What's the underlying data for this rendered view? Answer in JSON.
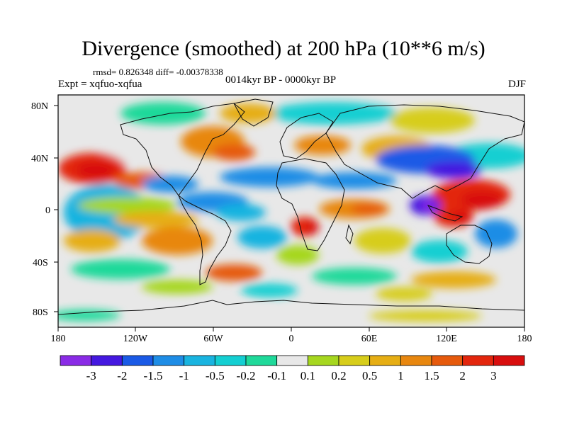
{
  "header": {
    "title": "Divergence (smoothed) at 200 hPa (10**6 m/s)",
    "stats": "rmsd= 0.826348 diff= -0.00378338",
    "experiment": "Expt = xqfuo-xqfua",
    "period": "0014kyr BP - 0000kyr BP",
    "season": "DJF"
  },
  "map": {
    "lat_ticks": [
      "80N",
      "40N",
      "0",
      "40S",
      "80S"
    ],
    "lon_ticks": [
      "180",
      "120W",
      "60W",
      "0",
      "60E",
      "120E",
      "180"
    ]
  },
  "colorbar": {
    "labels": [
      "-3",
      "-2",
      "-1.5",
      "-1",
      "-0.5",
      "-0.2",
      "-0.1",
      "0.1",
      "0.2",
      "0.5",
      "1",
      "1.5",
      "2",
      "3"
    ],
    "colors": [
      "#8a2be6",
      "#4418e0",
      "#1a5ae6",
      "#1e8de6",
      "#19b4e0",
      "#14cfd2",
      "#1fd99a",
      "#e8e8e8",
      "#a6d71f",
      "#d7cd1a",
      "#e6ae14",
      "#e8870f",
      "#e65a0c",
      "#e3260d",
      "#d80e0e"
    ]
  }
}
